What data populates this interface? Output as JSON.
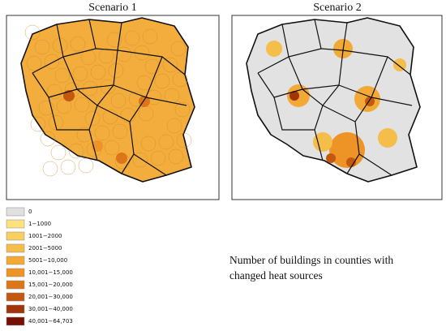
{
  "titles": [
    "Scenario 1",
    "Scenario 2"
  ],
  "legend": [
    {
      "label": "0",
      "color": "#e0e0e0"
    },
    {
      "label": "1−1000",
      "color": "#fbe27c"
    },
    {
      "label": "1001−2000",
      "color": "#f8d060"
    },
    {
      "label": "2001−5000",
      "color": "#f5bd4a"
    },
    {
      "label": "5001−10,000",
      "color": "#f2a936"
    },
    {
      "label": "10,001−15,000",
      "color": "#ee9326"
    },
    {
      "label": "15,001−20,000",
      "color": "#dc7618"
    },
    {
      "label": "20,001−30,000",
      "color": "#c45810"
    },
    {
      "label": "30,001−40,000",
      "color": "#a2340a"
    },
    {
      "label": "40,001−64,703",
      "color": "#761005"
    }
  ],
  "caption": [
    "Number of buildings in counties with",
    "changed heat sources"
  ]
}
